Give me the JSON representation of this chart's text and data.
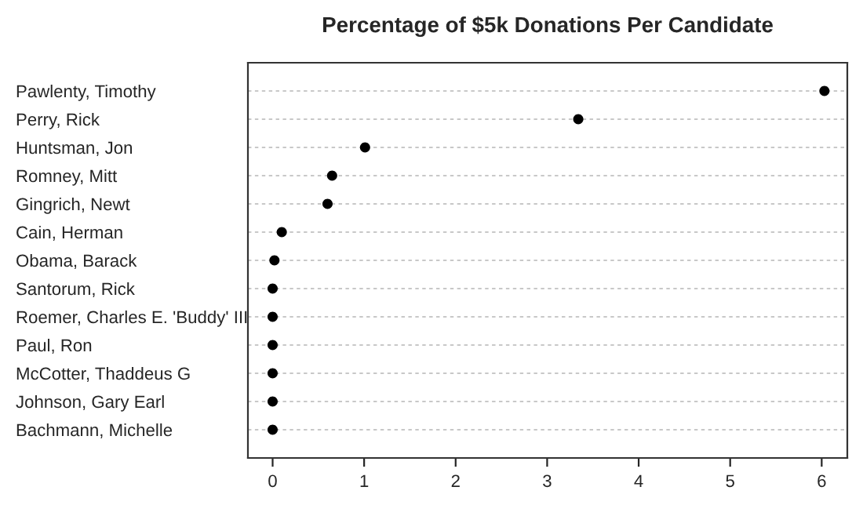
{
  "chart_data": {
    "type": "scatter",
    "orientation": "horizontal",
    "title": "Percentage of $5k Donations Per Candidate",
    "categories": [
      "Pawlenty, Timothy",
      "Perry, Rick",
      "Huntsman, Jon",
      "Romney, Mitt",
      "Gingrich, Newt",
      "Cain, Herman",
      "Obama, Barack",
      "Santorum, Rick",
      "Roemer, Charles E. 'Buddy' III",
      "Paul, Ron",
      "McCotter, Thaddeus G",
      "Johnson, Gary Earl",
      "Bachmann, Michelle"
    ],
    "series": [
      {
        "color": "#000000",
        "values": [
          6.03,
          3.34,
          1.01,
          0.65,
          0.6,
          0.1,
          0.02,
          0.0,
          0.0,
          0.0,
          0.0,
          0.0,
          0.0
        ]
      }
    ],
    "xlim": [
      -0.27,
      6.28
    ],
    "xticks": [
      0,
      1,
      2,
      3,
      4,
      5,
      6
    ],
    "grid": "y",
    "marker": "circle",
    "tick_labels": "xy"
  }
}
